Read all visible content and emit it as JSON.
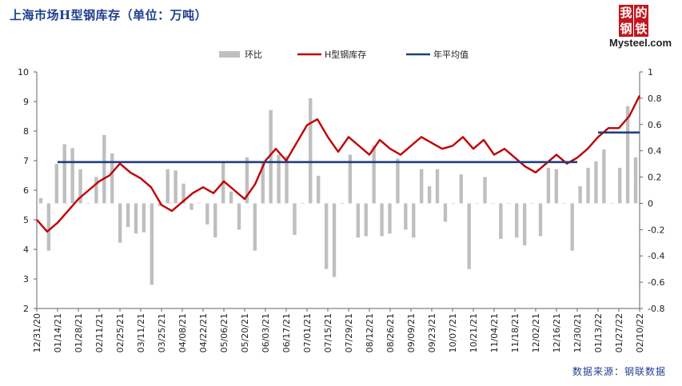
{
  "title": "上海市场H型钢库存（单位：万吨）",
  "source": "数据来源：钢联数据",
  "logo": {
    "chars": [
      "我",
      "的",
      "钢",
      "铁"
    ],
    "text": "Mysteel.com",
    "color": "#c4161c"
  },
  "chart_data": {
    "type": "bar+line",
    "title": "上海市场H型钢库存（单位：万吨）",
    "x_tick_labels": [
      "12/31/20",
      "01/14/21",
      "01/28/21",
      "02/11/21",
      "02/25/21",
      "03/11/21",
      "03/25/21",
      "04/08/21",
      "04/22/21",
      "05/06/21",
      "05/20/21",
      "06/03/21",
      "06/17/21",
      "07/01/21",
      "07/15/21",
      "07/29/21",
      "08/12/21",
      "08/26/21",
      "09/09/21",
      "09/23/21",
      "10/07/21",
      "10/21/21",
      "11/04/21",
      "11/18/21",
      "12/02/21",
      "12/16/21",
      "12/30/21",
      "01/13/22",
      "01/27/22",
      "02/10/22"
    ],
    "left_axis": {
      "min": 2,
      "max": 10,
      "ticks": [
        "10",
        "9",
        "8",
        "7",
        "6",
        "5",
        "4",
        "3",
        "2"
      ]
    },
    "right_axis": {
      "min": -0.8,
      "max": 1,
      "ticks": [
        "1",
        "0.8",
        "0.6",
        "0.4",
        "0.2",
        "0",
        "-0.2",
        "-0.4",
        "-0.6",
        "-0.8"
      ]
    },
    "legend": [
      "环比",
      "H型钢库存",
      "年平均值"
    ],
    "series": [
      {
        "name": "环比",
        "kind": "bar",
        "axis": "right",
        "color": "#bfbfbf",
        "values": [
          0.04,
          -0.36,
          0.3,
          0.45,
          0.42,
          0.26,
          0.0,
          0.2,
          0.52,
          0.38,
          -0.3,
          -0.18,
          -0.23,
          -0.22,
          -0.62,
          -0.02,
          0.26,
          0.25,
          0.15,
          -0.05,
          0.0,
          -0.16,
          -0.26,
          0.32,
          0.09,
          -0.2,
          0.35,
          -0.36,
          0.32,
          0.71,
          0.37,
          0.36,
          -0.24,
          0.0,
          0.8,
          0.21,
          -0.5,
          -0.56,
          0.0,
          0.37,
          -0.26,
          -0.25,
          0.44,
          -0.25,
          -0.23,
          0.34,
          -0.2,
          -0.26,
          0.26,
          0.13,
          0.26,
          -0.14,
          0.0,
          0.22,
          -0.5,
          0.0,
          0.2,
          0.0,
          -0.27,
          0.0,
          -0.26,
          -0.32,
          0.0,
          -0.25,
          0.27,
          0.26,
          0.0,
          -0.36,
          0.13,
          0.27,
          0.32,
          0.41,
          0.0,
          0.27,
          0.74,
          0.35
        ]
      },
      {
        "name": "H型钢库存",
        "kind": "line",
        "axis": "left",
        "color": "#c00000",
        "values": [
          5.0,
          4.6,
          4.9,
          5.3,
          5.7,
          6.0,
          6.3,
          6.5,
          6.9,
          6.6,
          6.4,
          6.1,
          5.5,
          5.3,
          5.6,
          5.9,
          6.1,
          5.9,
          6.3,
          6.0,
          5.7,
          6.2,
          7.0,
          7.4,
          7.0,
          7.6,
          8.2,
          8.4,
          7.8,
          7.3,
          7.8,
          7.5,
          7.2,
          7.7,
          7.4,
          7.2,
          7.5,
          7.8,
          7.6,
          7.4,
          7.5,
          7.8,
          7.4,
          7.7,
          7.2,
          7.4,
          7.1,
          6.8,
          6.6,
          6.9,
          7.2,
          6.9,
          7.1,
          7.4,
          7.8,
          8.1,
          8.1,
          8.5,
          9.2
        ]
      },
      {
        "name": "年平均值",
        "kind": "line",
        "axis": "left",
        "color": "#1f3f7f",
        "segments": [
          {
            "from_tick": "01/14/21",
            "to_tick": "12/30/21",
            "value": 6.95
          },
          {
            "from_tick": "01/13/22",
            "to_tick": "02/10/22",
            "value": 7.95
          }
        ]
      }
    ]
  }
}
